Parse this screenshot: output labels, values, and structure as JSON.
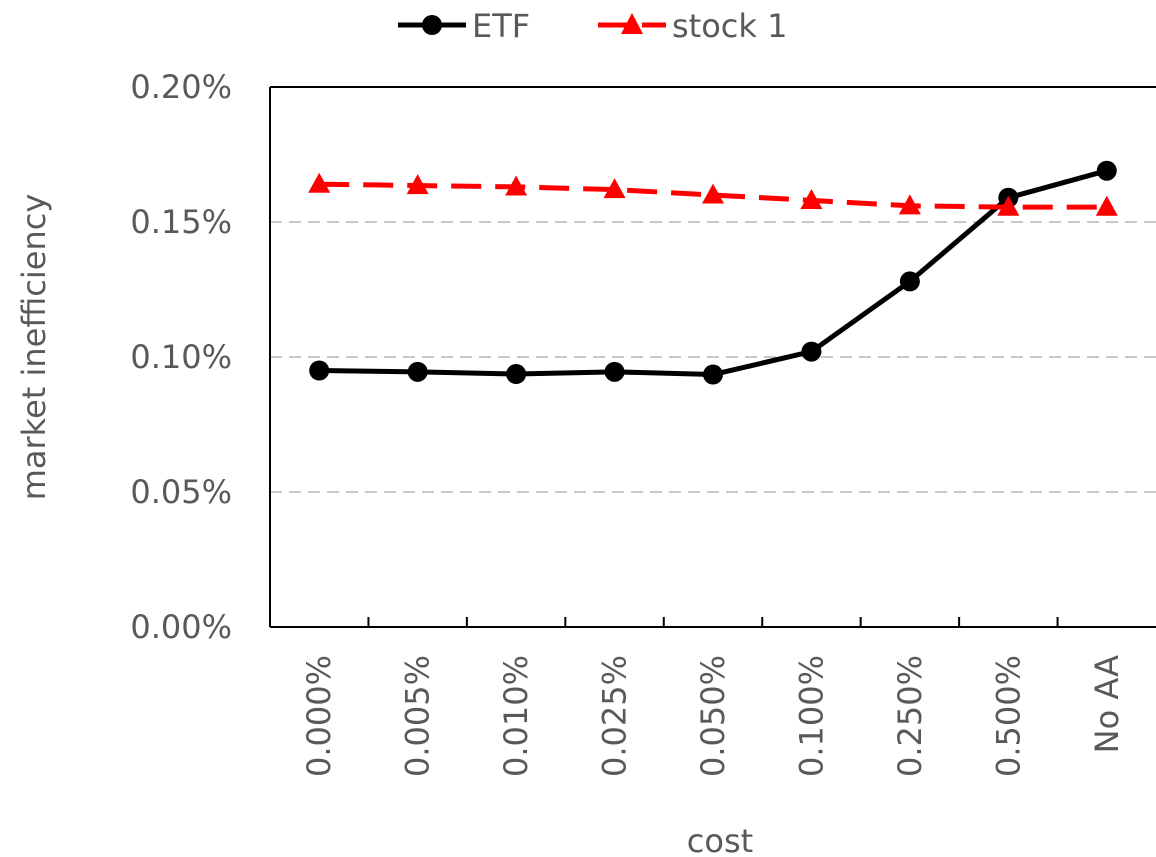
{
  "chart_data": {
    "type": "line",
    "categories": [
      "0.000%",
      "0.005%",
      "0.010%",
      "0.025%",
      "0.050%",
      "0.100%",
      "0.250%",
      "0.500%",
      "No AA"
    ],
    "series": [
      {
        "name": "ETF",
        "color": "#000000",
        "marker": "circle",
        "line_style": "solid",
        "values": [
          0.00095,
          0.000945,
          0.000937,
          0.000945,
          0.000935,
          0.00102,
          0.00128,
          0.00159,
          0.00169
        ]
      },
      {
        "name": "stock 1",
        "color": "#ff0000",
        "marker": "triangle",
        "line_style": "dashed",
        "values": [
          0.00164,
          0.001635,
          0.00163,
          0.00162,
          0.0016,
          0.00158,
          0.00156,
          0.001555,
          0.001555
        ]
      }
    ],
    "y_ticks": [
      "0.00%",
      "0.05%",
      "0.10%",
      "0.15%",
      "0.20%"
    ],
    "ylim": [
      0,
      0.002
    ],
    "xlabel": "cost",
    "ylabel": "market inefficiency",
    "grid": "horizontal dashed",
    "legend_position": "top"
  }
}
